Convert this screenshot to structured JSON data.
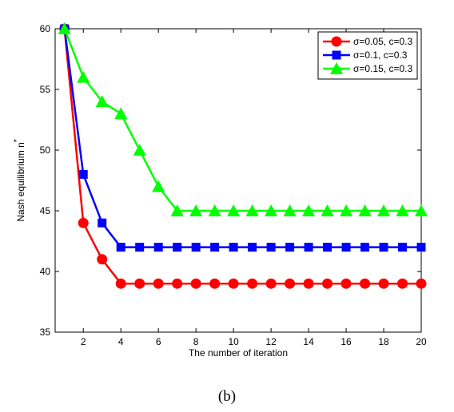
{
  "chart_data": {
    "type": "line",
    "xlabel": "The number of iteration",
    "ylabel": "Nash equilibrium n",
    "ylabel_superscript": "*",
    "xlim": [
      0.5,
      20
    ],
    "ylim": [
      35,
      60
    ],
    "xticks": [
      2,
      4,
      6,
      8,
      10,
      12,
      14,
      16,
      18,
      20
    ],
    "yticks": [
      35,
      40,
      45,
      50,
      55,
      60
    ],
    "grid": false,
    "legend_position": "top-right",
    "x": [
      1,
      2,
      3,
      4,
      5,
      6,
      7,
      8,
      9,
      10,
      11,
      12,
      13,
      14,
      15,
      16,
      17,
      18,
      19,
      20
    ],
    "series": [
      {
        "name": "σ=0.05, c=0.3",
        "color": "#ff0000",
        "marker": "circle",
        "values": [
          60,
          44,
          41,
          39,
          39,
          39,
          39,
          39,
          39,
          39,
          39,
          39,
          39,
          39,
          39,
          39,
          39,
          39,
          39,
          39
        ]
      },
      {
        "name": "σ=0.1, c=0.3",
        "color": "#0000ff",
        "marker": "square",
        "values": [
          60,
          48,
          44,
          42,
          42,
          42,
          42,
          42,
          42,
          42,
          42,
          42,
          42,
          42,
          42,
          42,
          42,
          42,
          42,
          42
        ]
      },
      {
        "name": "σ=0.15, c=0.3",
        "color": "#00ff00",
        "marker": "triangle",
        "values": [
          60,
          56,
          54,
          53,
          50,
          47,
          45,
          45,
          45,
          45,
          45,
          45,
          45,
          45,
          45,
          45,
          45,
          45,
          45,
          45
        ]
      }
    ]
  },
  "caption": "(b)"
}
